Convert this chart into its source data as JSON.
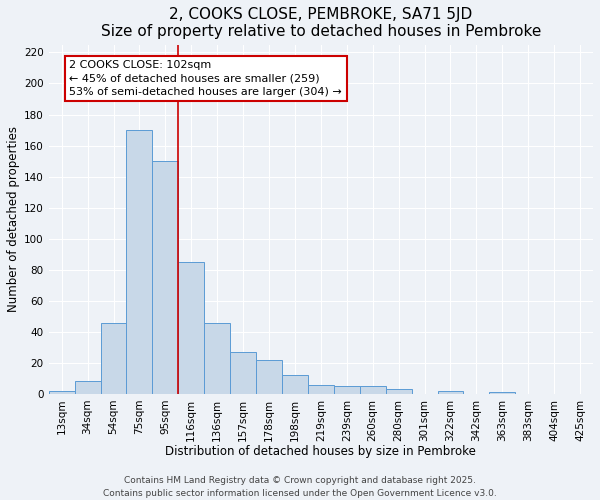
{
  "title": "2, COOKS CLOSE, PEMBROKE, SA71 5JD",
  "subtitle": "Size of property relative to detached houses in Pembroke",
  "xlabel": "Distribution of detached houses by size in Pembroke",
  "ylabel": "Number of detached properties",
  "bar_labels": [
    "13sqm",
    "34sqm",
    "54sqm",
    "75sqm",
    "95sqm",
    "116sqm",
    "136sqm",
    "157sqm",
    "178sqm",
    "198sqm",
    "219sqm",
    "239sqm",
    "260sqm",
    "280sqm",
    "301sqm",
    "322sqm",
    "342sqm",
    "363sqm",
    "383sqm",
    "404sqm",
    "425sqm"
  ],
  "bar_values": [
    2,
    8,
    46,
    170,
    150,
    85,
    46,
    27,
    22,
    12,
    6,
    5,
    5,
    3,
    0,
    2,
    0,
    1,
    0,
    0,
    0
  ],
  "bar_color": "#c8d8e8",
  "bar_edge_color": "#5b9bd5",
  "vline_x_index": 4,
  "vline_color": "#cc0000",
  "annotation_line1": "2 COOKS CLOSE: 102sqm",
  "annotation_line2": "← 45% of detached houses are smaller (259)",
  "annotation_line3": "53% of semi-detached houses are larger (304) →",
  "annotation_box_color": "white",
  "annotation_box_edge": "#cc0000",
  "ylim": [
    0,
    225
  ],
  "yticks": [
    0,
    20,
    40,
    60,
    80,
    100,
    120,
    140,
    160,
    180,
    200,
    220
  ],
  "footnote1": "Contains HM Land Registry data © Crown copyright and database right 2025.",
  "footnote2": "Contains public sector information licensed under the Open Government Licence v3.0.",
  "bg_color": "#eef2f7",
  "grid_color": "#ffffff",
  "title_fontsize": 11,
  "axis_label_fontsize": 8.5,
  "tick_fontsize": 7.5,
  "annotation_fontsize": 8,
  "footnote_fontsize": 6.5
}
